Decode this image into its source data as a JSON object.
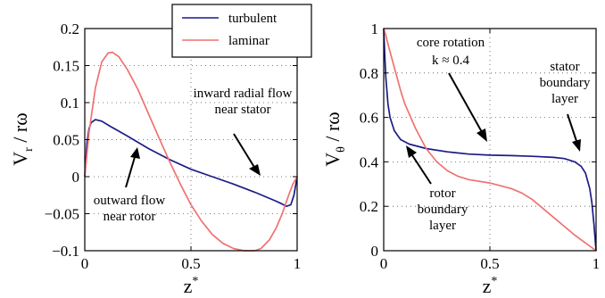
{
  "legend": {
    "entries": [
      {
        "label": "turbulent",
        "color": "#1c1c86"
      },
      {
        "label": "laminar",
        "color": "#f07272"
      }
    ]
  },
  "chart_data": [
    {
      "type": "line",
      "xlabel_base": "z",
      "xlabel_sup": "*",
      "ylabel_base": "V",
      "ylabel_sub": "r",
      "ylabel_rest": " / rω",
      "xlim": [
        0,
        1
      ],
      "ylim": [
        -0.1,
        0.2
      ],
      "xticks": [
        0,
        0.5,
        1
      ],
      "xtick_labels": [
        "0",
        "0.5",
        "1"
      ],
      "yticks": [
        -0.1,
        -0.05,
        0,
        0.05,
        0.1,
        0.15,
        0.2
      ],
      "ytick_labels": [
        "−0.1",
        "−0.05",
        "0",
        "0.05",
        "0.1",
        "0.15",
        "0.2"
      ],
      "grid": true,
      "series": [
        {
          "name": "turbulent",
          "color": "#1c1c86",
          "x": [
            0,
            0.01,
            0.02,
            0.03,
            0.05,
            0.08,
            0.12,
            0.2,
            0.3,
            0.4,
            0.5,
            0.6,
            0.7,
            0.8,
            0.9,
            0.93,
            0.95,
            0.97,
            0.985,
            1.0
          ],
          "y": [
            0,
            0.045,
            0.065,
            0.073,
            0.077,
            0.075,
            0.068,
            0.055,
            0.038,
            0.023,
            0.01,
            0.0,
            -0.01,
            -0.021,
            -0.033,
            -0.037,
            -0.04,
            -0.038,
            -0.025,
            0
          ]
        },
        {
          "name": "laminar",
          "color": "#f07272",
          "x": [
            0,
            0.02,
            0.05,
            0.08,
            0.11,
            0.13,
            0.16,
            0.2,
            0.25,
            0.3,
            0.35,
            0.4,
            0.45,
            0.5,
            0.55,
            0.6,
            0.65,
            0.7,
            0.75,
            0.8,
            0.83,
            0.87,
            0.9,
            0.93,
            0.96,
            0.98,
            1.0
          ],
          "y": [
            0,
            0.06,
            0.12,
            0.155,
            0.167,
            0.168,
            0.162,
            0.145,
            0.118,
            0.085,
            0.052,
            0.02,
            -0.01,
            -0.038,
            -0.06,
            -0.078,
            -0.09,
            -0.097,
            -0.1,
            -0.1,
            -0.097,
            -0.085,
            -0.07,
            -0.05,
            -0.025,
            -0.01,
            0
          ]
        }
      ],
      "annotations": [
        {
          "lines": [
            "inward radial flow",
            "near stator"
          ]
        },
        {
          "lines": [
            "outward flow",
            "near rotor"
          ]
        }
      ]
    },
    {
      "type": "line",
      "xlabel_base": "z",
      "xlabel_sup": "*",
      "ylabel_base": "V",
      "ylabel_sub": "θ",
      "ylabel_rest": " / rω",
      "xlim": [
        0,
        1
      ],
      "ylim": [
        0,
        1
      ],
      "xticks": [
        0,
        0.5,
        1
      ],
      "xtick_labels": [
        "0",
        "0.5",
        "1"
      ],
      "yticks": [
        0,
        0.2,
        0.4,
        0.6,
        0.8,
        1
      ],
      "ytick_labels": [
        "0",
        "0.2",
        "0.4",
        "0.6",
        "0.8",
        "1"
      ],
      "grid": true,
      "series": [
        {
          "name": "turbulent",
          "color": "#1c1c86",
          "x": [
            0,
            0.005,
            0.01,
            0.02,
            0.03,
            0.05,
            0.08,
            0.12,
            0.2,
            0.3,
            0.4,
            0.5,
            0.6,
            0.7,
            0.8,
            0.85,
            0.9,
            0.93,
            0.95,
            0.97,
            0.98,
            0.99,
            1.0
          ],
          "y": [
            1.0,
            0.88,
            0.78,
            0.66,
            0.6,
            0.54,
            0.5,
            0.48,
            0.46,
            0.445,
            0.435,
            0.43,
            0.428,
            0.425,
            0.42,
            0.415,
            0.4,
            0.38,
            0.35,
            0.28,
            0.22,
            0.12,
            0.0
          ]
        },
        {
          "name": "laminar",
          "color": "#f07272",
          "x": [
            0,
            0.01,
            0.02,
            0.04,
            0.06,
            0.08,
            0.1,
            0.15,
            0.2,
            0.25,
            0.3,
            0.35,
            0.4,
            0.5,
            0.6,
            0.65,
            0.7,
            0.75,
            0.8,
            0.85,
            0.9,
            0.95,
            1.0
          ],
          "y": [
            1.0,
            0.97,
            0.93,
            0.86,
            0.79,
            0.72,
            0.66,
            0.55,
            0.46,
            0.4,
            0.36,
            0.335,
            0.32,
            0.305,
            0.28,
            0.26,
            0.23,
            0.19,
            0.15,
            0.11,
            0.07,
            0.035,
            0.0
          ]
        }
      ],
      "annotations": [
        {
          "lines": [
            "core rotation",
            "k ≈ 0.4"
          ]
        },
        {
          "lines": [
            "stator",
            "boundary",
            "layer"
          ]
        },
        {
          "lines": [
            "rotor",
            "boundary",
            "layer"
          ]
        }
      ]
    }
  ]
}
